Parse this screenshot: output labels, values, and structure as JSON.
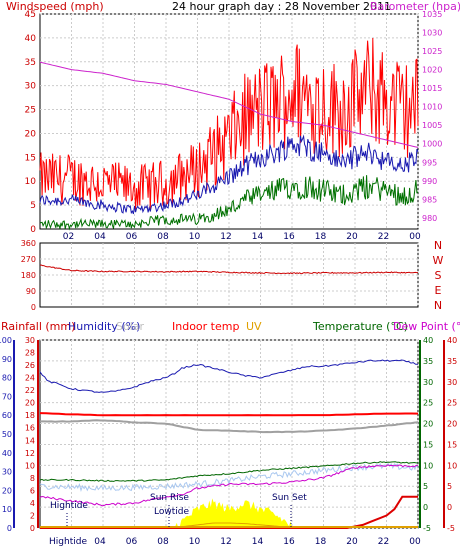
{
  "header": {
    "left_label": "Windspeed (mph)",
    "title": "24 hour graph day : 28 November 2011",
    "right_label": "Barometer (hpa)"
  },
  "legend2": {
    "rainfall": "Rainfall (mm)",
    "humidity": "Humidity (%)",
    "solar": "Solar",
    "indoor": "Indoor temp",
    "uv": "UV",
    "temperature": "Temperature (°C)",
    "dewpoint": "Dew Point (°C)"
  },
  "annotations": {
    "hightide_upper": "Hightide",
    "sunrise": "Sun Rise",
    "lowtide": "Lowtide",
    "sunset": "Sun Set",
    "hightide_axis": "Hightide"
  },
  "colors": {
    "wind_avg": "#1a1ab0",
    "wind_gust": "#ff0000",
    "wind_low": "#007000",
    "barometer": "#cc22cc",
    "direction": "#cc0000",
    "rain": "#dd0000",
    "humidity": "#1a1ab0",
    "solar": "#ffff00",
    "uv": "#e0a000",
    "indoor": "#ff0000",
    "temperature": "#006600",
    "dewpoint": "#cc00cc",
    "gray": "#a0a0a0",
    "light_blue": "#aac8f0"
  },
  "chart_data": [
    {
      "type": "line",
      "name": "wind_and_barometer",
      "x_ticks": [
        "02",
        "04",
        "06",
        "08",
        "10",
        "12",
        "14",
        "16",
        "18",
        "20",
        "22",
        "00"
      ],
      "left_axis": {
        "label": "Windspeed (mph)",
        "ticks": [
          0,
          5,
          10,
          15,
          20,
          25,
          30,
          35,
          40,
          45
        ],
        "range": [
          0,
          45
        ]
      },
      "right_axis": {
        "label": "Barometer (hpa)",
        "ticks": [
          980,
          985,
          990,
          995,
          1000,
          1005,
          1010,
          1015,
          1020,
          1025,
          1030,
          1035
        ],
        "range": [
          977,
          1035
        ]
      },
      "series": [
        {
          "name": "gust",
          "x": [
            0,
            2,
            4,
            6,
            8,
            10,
            12,
            13,
            14,
            15,
            16,
            17,
            18,
            19,
            20,
            21,
            22,
            23,
            24
          ],
          "values": [
            10,
            10,
            9,
            8,
            9,
            12,
            18,
            22,
            24,
            25,
            28,
            26,
            25,
            24,
            26,
            28,
            26,
            24,
            25
          ]
        },
        {
          "name": "average",
          "x": [
            0,
            2,
            4,
            6,
            8,
            10,
            12,
            13,
            14,
            15,
            16,
            17,
            18,
            19,
            20,
            21,
            22,
            23,
            24
          ],
          "values": [
            6,
            6,
            5,
            4,
            5,
            7,
            11,
            13,
            15,
            16,
            18,
            17,
            16,
            14,
            15,
            16,
            14,
            13,
            15
          ]
        },
        {
          "name": "low",
          "x": [
            0,
            2,
            4,
            6,
            8,
            10,
            12,
            13,
            14,
            15,
            16,
            17,
            18,
            19,
            20,
            21,
            22,
            23,
            24
          ],
          "values": [
            1,
            1,
            1,
            1,
            2,
            2,
            4,
            6,
            7,
            8,
            9,
            9,
            8,
            7,
            8,
            9,
            8,
            7,
            8
          ]
        },
        {
          "name": "barometer",
          "x": [
            0,
            2,
            4,
            6,
            8,
            10,
            12,
            14,
            16,
            18,
            20,
            22,
            24
          ],
          "values": [
            1022,
            1020,
            1019,
            1017,
            1016,
            1014,
            1012,
            1008,
            1006,
            1005,
            1003,
            1001,
            999
          ]
        }
      ]
    },
    {
      "type": "line",
      "name": "wind_direction",
      "left_axis": {
        "ticks": [
          0,
          90,
          180,
          270,
          360
        ],
        "range": [
          0,
          360
        ]
      },
      "right_labels": [
        "N",
        "W",
        "S",
        "E",
        "N"
      ],
      "series": [
        {
          "name": "direction",
          "x": [
            0,
            1,
            2,
            4,
            6,
            8,
            10,
            12,
            14,
            16,
            18,
            20,
            22,
            24
          ],
          "values": [
            235,
            220,
            205,
            200,
            200,
            198,
            200,
            195,
            192,
            190,
            192,
            192,
            195,
            192
          ]
        }
      ]
    },
    {
      "type": "line",
      "name": "temperature_humidity_rain",
      "x_ticks": [
        "Hightide",
        "04",
        "06",
        "08",
        "10",
        "12",
        "14",
        "16",
        "18",
        "20",
        "22",
        "00"
      ],
      "humidity_axis": {
        "ticks": [
          0,
          10,
          20,
          30,
          40,
          50,
          60,
          70,
          80,
          90,
          100
        ],
        "range": [
          0,
          100
        ]
      },
      "rain_axis": {
        "ticks": [
          0,
          2,
          4,
          6,
          8,
          10,
          12,
          14,
          16,
          18,
          20,
          22,
          24,
          26,
          28,
          30
        ],
        "range": [
          0,
          30
        ]
      },
      "temp_axis": {
        "ticks": [
          -5,
          0,
          5,
          10,
          15,
          20,
          25,
          30,
          35,
          40
        ],
        "range": [
          -5,
          40
        ]
      },
      "dew_axis": {
        "ticks": [
          -5,
          0,
          5,
          10,
          15,
          20,
          25,
          30,
          35,
          40
        ],
        "range": [
          -5,
          40
        ]
      },
      "series": [
        {
          "name": "humidity",
          "x": [
            0,
            0.5,
            1,
            2,
            3,
            4,
            5,
            6,
            7,
            8,
            8.5,
            9,
            10,
            11,
            12,
            13,
            14,
            15,
            16,
            17,
            18,
            19,
            20,
            21,
            22,
            23,
            24
          ],
          "values": [
            83,
            78,
            77,
            74,
            73,
            72,
            73,
            75,
            78,
            80,
            82,
            85,
            87,
            85,
            83,
            81,
            80,
            82,
            84,
            86,
            86,
            87,
            88,
            89,
            89,
            89,
            87
          ]
        },
        {
          "name": "indoor_temp",
          "x": [
            0,
            2,
            4,
            6,
            8,
            10,
            12,
            14,
            16,
            18,
            20,
            22,
            24
          ],
          "values": [
            22.5,
            22.2,
            22.0,
            22.0,
            22.0,
            22.0,
            22.0,
            22.0,
            22.0,
            22.0,
            22.2,
            22.4,
            22.4
          ]
        },
        {
          "name": "gray_temp",
          "x": [
            0,
            2,
            4,
            6,
            8,
            10,
            12,
            14,
            16,
            18,
            20,
            22,
            24
          ],
          "values": [
            20.5,
            20.5,
            20.8,
            20.3,
            20.0,
            18.5,
            18.3,
            18.0,
            18.0,
            18.3,
            18.8,
            19.5,
            20.3
          ]
        },
        {
          "name": "temperature",
          "x": [
            0,
            2,
            4,
            6,
            8,
            10,
            12,
            14,
            16,
            18,
            20,
            22,
            24
          ],
          "values": [
            6.5,
            6.5,
            6.3,
            6.3,
            6.5,
            7.5,
            8.0,
            8.8,
            9.3,
            9.8,
            10.5,
            10.8,
            10.5
          ]
        },
        {
          "name": "light_blue",
          "x": [
            0,
            2,
            4,
            6,
            8,
            10,
            12,
            14,
            16,
            18,
            20,
            22,
            24
          ],
          "values": [
            5.0,
            4.8,
            4.5,
            4.7,
            5.0,
            5.5,
            6.3,
            7.3,
            8.0,
            8.8,
            9.5,
            9.8,
            9.3
          ]
        },
        {
          "name": "dew_point",
          "x": [
            0,
            2,
            4,
            6,
            8,
            9,
            10,
            12,
            14,
            16,
            18,
            20,
            22,
            24
          ],
          "values": [
            2.5,
            1.5,
            0.5,
            1.0,
            2.5,
            3.0,
            4.5,
            5.5,
            5.5,
            6.0,
            7.0,
            9.5,
            10.0,
            9.8
          ]
        },
        {
          "name": "rainfall",
          "x": [
            0,
            19.5,
            20.5,
            21,
            22,
            22.5,
            23,
            24
          ],
          "values": [
            0,
            0,
            0.5,
            1.0,
            2.0,
            3.0,
            5.0,
            5.0
          ]
        },
        {
          "name": "solar",
          "x": [
            8.5,
            9,
            10,
            11,
            12,
            13,
            14,
            15,
            16
          ],
          "values": [
            0.2,
            1,
            3,
            4,
            3,
            4,
            3,
            2,
            0.3
          ]
        },
        {
          "name": "uv",
          "x": [
            8.5,
            9,
            10,
            11,
            12,
            13,
            14,
            15,
            16
          ],
          "values": [
            0,
            0.2,
            0.5,
            0.8,
            0.8,
            0.7,
            0.5,
            0.3,
            0
          ]
        }
      ]
    }
  ]
}
